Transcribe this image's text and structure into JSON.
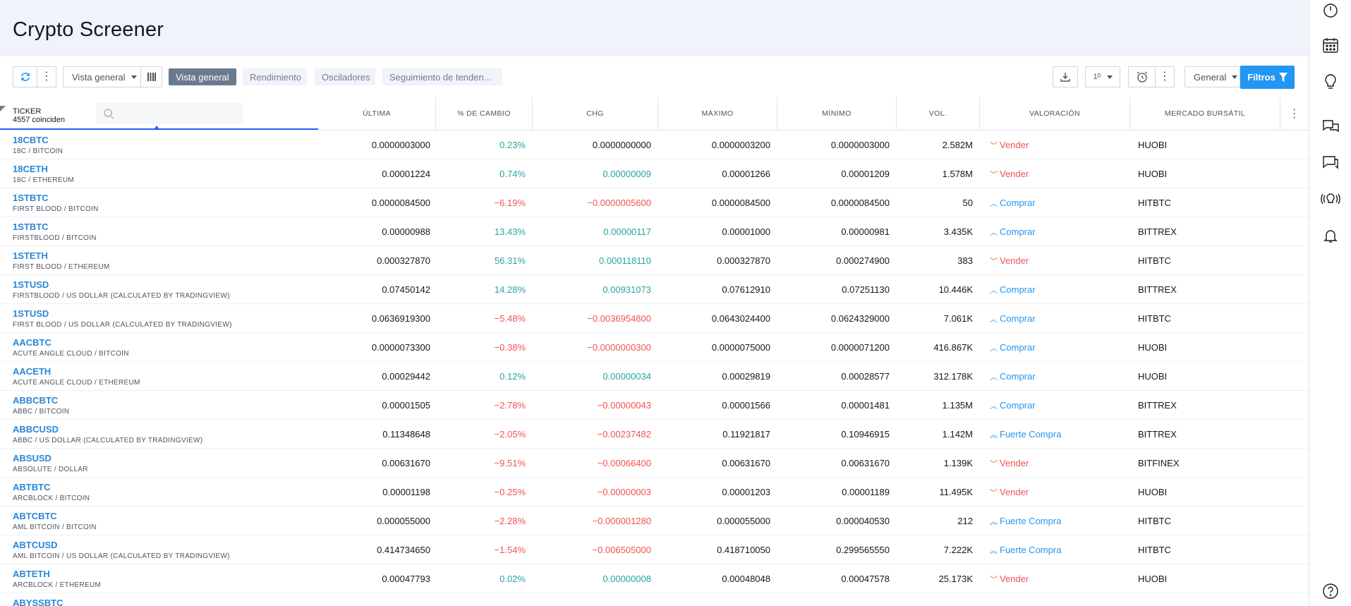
{
  "page": {
    "title": "Crypto Screener"
  },
  "toolbar": {
    "view_select": "Vista general",
    "tabs": [
      "Vista general",
      "Rendimiento",
      "Osciladores",
      "Seguimiento de tenden..."
    ],
    "interval": "1ᴰ",
    "market_select": "General",
    "filters_label": "Filtros"
  },
  "table": {
    "ticker_header": "TICKER",
    "match_count": "4557 coinciden",
    "columns": [
      "ÚLTIMA",
      "% DE CAMBIO",
      "CHG",
      "MÁXIMO",
      "MÍNIMO",
      "VOL.",
      "VALORACIÓN",
      "MERCADO BURSÁTIL"
    ],
    "rows": [
      {
        "symbol": "18CBTC",
        "desc": "18C / BITCOIN",
        "last": "0.0000003000",
        "pct": "0.23%",
        "chg": "0.0000000000",
        "high": "0.0000003200",
        "low": "0.0000003000",
        "vol": "2.582M",
        "rating": "Vender",
        "exchange": "HUOBI",
        "dir": "pos",
        "chgdir": "neutral",
        "rt": "sell"
      },
      {
        "symbol": "18CETH",
        "desc": "18C / ETHEREUM",
        "last": "0.00001224",
        "pct": "0.74%",
        "chg": "0.00000009",
        "high": "0.00001266",
        "low": "0.00001209",
        "vol": "1.578M",
        "rating": "Vender",
        "exchange": "HUOBI",
        "dir": "pos",
        "chgdir": "pos",
        "rt": "sell"
      },
      {
        "symbol": "1STBTC",
        "desc": "FIRST BLOOD / BITCOIN",
        "last": "0.0000084500",
        "pct": "−6.19%",
        "chg": "−0.0000005600",
        "high": "0.0000084500",
        "low": "0.0000084500",
        "vol": "50",
        "rating": "Comprar",
        "exchange": "HITBTC",
        "dir": "neg",
        "chgdir": "neg",
        "rt": "buy"
      },
      {
        "symbol": "1STBTC",
        "desc": "FIRSTBLOOD / BITCOIN",
        "last": "0.00000988",
        "pct": "13.43%",
        "chg": "0.00000117",
        "high": "0.00001000",
        "low": "0.00000981",
        "vol": "3.435K",
        "rating": "Comprar",
        "exchange": "BITTREX",
        "dir": "pos",
        "chgdir": "pos",
        "rt": "buy"
      },
      {
        "symbol": "1STETH",
        "desc": "FIRST BLOOD / ETHEREUM",
        "last": "0.000327870",
        "pct": "56.31%",
        "chg": "0.000118110",
        "high": "0.000327870",
        "low": "0.000274900",
        "vol": "383",
        "rating": "Vender",
        "exchange": "HITBTC",
        "dir": "pos",
        "chgdir": "pos",
        "rt": "sell"
      },
      {
        "symbol": "1STUSD",
        "desc": "FIRSTBLOOD / US DOLLAR (CALCULATED BY TRADINGVIEW)",
        "last": "0.07450142",
        "pct": "14.28%",
        "chg": "0.00931073",
        "high": "0.07612910",
        "low": "0.07251130",
        "vol": "10.446K",
        "rating": "Comprar",
        "exchange": "BITTREX",
        "dir": "pos",
        "chgdir": "pos",
        "rt": "buy"
      },
      {
        "symbol": "1STUSD",
        "desc": "FIRST BLOOD / US DOLLAR (CALCULATED BY TRADINGVIEW)",
        "last": "0.0636919300",
        "pct": "−5.48%",
        "chg": "−0.0036954800",
        "high": "0.0643024400",
        "low": "0.0624329000",
        "vol": "7.061K",
        "rating": "Comprar",
        "exchange": "HITBTC",
        "dir": "neg",
        "chgdir": "neg",
        "rt": "buy"
      },
      {
        "symbol": "AACBTC",
        "desc": "ACUTE ANGLE CLOUD / BITCOIN",
        "last": "0.0000073300",
        "pct": "−0.38%",
        "chg": "−0.0000000300",
        "high": "0.0000075000",
        "low": "0.0000071200",
        "vol": "416.867K",
        "rating": "Comprar",
        "exchange": "HUOBI",
        "dir": "neg",
        "chgdir": "neg",
        "rt": "buy"
      },
      {
        "symbol": "AACETH",
        "desc": "ACUTE ANGLE CLOUD / ETHEREUM",
        "last": "0.00029442",
        "pct": "0.12%",
        "chg": "0.00000034",
        "high": "0.00029819",
        "low": "0.00028577",
        "vol": "312.178K",
        "rating": "Comprar",
        "exchange": "HUOBI",
        "dir": "pos",
        "chgdir": "pos",
        "rt": "buy"
      },
      {
        "symbol": "ABBCBTC",
        "desc": "ABBC / BITCOIN",
        "last": "0.00001505",
        "pct": "−2.78%",
        "chg": "−0.00000043",
        "high": "0.00001566",
        "low": "0.00001481",
        "vol": "1.135M",
        "rating": "Comprar",
        "exchange": "BITTREX",
        "dir": "neg",
        "chgdir": "neg",
        "rt": "buy"
      },
      {
        "symbol": "ABBCUSD",
        "desc": "ABBC / US DOLLAR (CALCULATED BY TRADINGVIEW)",
        "last": "0.11348648",
        "pct": "−2.05%",
        "chg": "−0.00237482",
        "high": "0.11921817",
        "low": "0.10946915",
        "vol": "1.142M",
        "rating": "Fuerte Compra",
        "exchange": "BITTREX",
        "dir": "neg",
        "chgdir": "neg",
        "rt": "strongbuy"
      },
      {
        "symbol": "ABSUSD",
        "desc": "ABSOLUTE / DOLLAR",
        "last": "0.00631670",
        "pct": "−9.51%",
        "chg": "−0.00066400",
        "high": "0.00631670",
        "low": "0.00631670",
        "vol": "1.139K",
        "rating": "Vender",
        "exchange": "BITFINEX",
        "dir": "neg",
        "chgdir": "neg",
        "rt": "sell"
      },
      {
        "symbol": "ABTBTC",
        "desc": "ARCBLOCK / BITCOIN",
        "last": "0.00001198",
        "pct": "−0.25%",
        "chg": "−0.00000003",
        "high": "0.00001203",
        "low": "0.00001189",
        "vol": "11.495K",
        "rating": "Vender",
        "exchange": "HUOBI",
        "dir": "neg",
        "chgdir": "neg",
        "rt": "sell"
      },
      {
        "symbol": "ABTCBTC",
        "desc": "AML BITCOIN / BITCOIN",
        "last": "0.000055000",
        "pct": "−2.28%",
        "chg": "−0.000001280",
        "high": "0.000055000",
        "low": "0.000040530",
        "vol": "212",
        "rating": "Fuerte Compra",
        "exchange": "HITBTC",
        "dir": "neg",
        "chgdir": "neg",
        "rt": "strongbuy"
      },
      {
        "symbol": "ABTCUSD",
        "desc": "AML BITCOIN / US DOLLAR (CALCULATED BY TRADINGVIEW)",
        "last": "0.414734650",
        "pct": "−1.54%",
        "chg": "−0.006505000",
        "high": "0.418710050",
        "low": "0.299565550",
        "vol": "7.222K",
        "rating": "Fuerte Compra",
        "exchange": "HITBTC",
        "dir": "neg",
        "chgdir": "neg",
        "rt": "strongbuy"
      },
      {
        "symbol": "ABTETH",
        "desc": "ARCBLOCK / ETHEREUM",
        "last": "0.00047793",
        "pct": "0.02%",
        "chg": "0.00000008",
        "high": "0.00048048",
        "low": "0.00047578",
        "vol": "25.173K",
        "rating": "Vender",
        "exchange": "HUOBI",
        "dir": "pos",
        "chgdir": "pos",
        "rt": "sell"
      },
      {
        "symbol": "ABYSSBTC",
        "desc": "",
        "last": "",
        "pct": "",
        "chg": "",
        "high": "",
        "low": "",
        "vol": "",
        "rating": "",
        "exchange": "",
        "dir": "pos",
        "chgdir": "pos",
        "rt": "sell"
      }
    ]
  },
  "icons": {
    "refresh": "refresh-icon",
    "more": "more-vert-icon",
    "columns": "columns-icon",
    "download": "download-icon",
    "alarm": "alarm-clock-icon",
    "filter": "filter-icon",
    "search": "search-icon"
  },
  "colors": {
    "accent": "#2196f3",
    "positive": "#26a69a",
    "negative": "#ef5350",
    "symbol": "#2a86d6"
  }
}
